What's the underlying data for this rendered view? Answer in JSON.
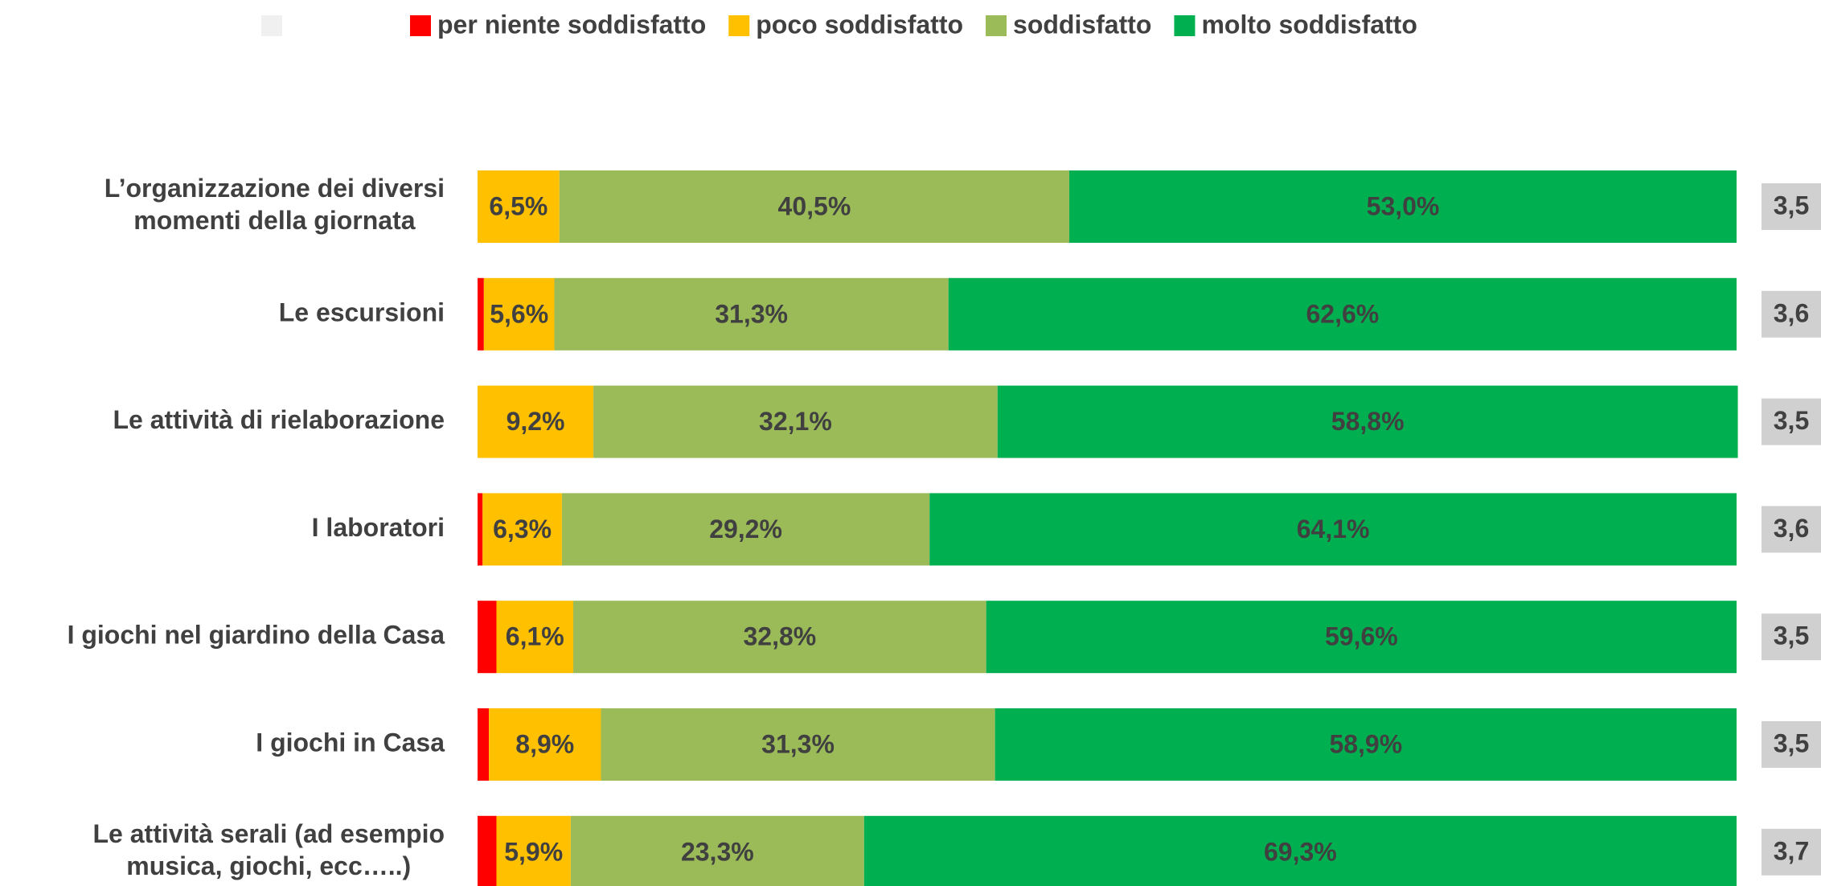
{
  "chart_data": {
    "type": "stacked_bar_horizontal",
    "categories": [
      "L’organizzazione dei diversi\nmomenti della giornata",
      "Le escursioni",
      "Le attività di rielaborazione",
      "I laboratori",
      "I giochi nel giardino della Casa",
      "I giochi in Casa",
      "Le attività serali (ad esempio\nmusica, giochi, ecc…..)"
    ],
    "xlim": [
      0,
      100
    ],
    "legend": "top",
    "series": [
      {
        "name": "per niente soddisfatto",
        "color": "#ff0000",
        "values": [
          0,
          0.5,
          0,
          0.4,
          1.5,
          0.9,
          1.5
        ]
      },
      {
        "name": "poco soddisfatto",
        "color": "#ffc000",
        "values": [
          6.5,
          5.6,
          9.2,
          6.3,
          6.1,
          8.9,
          5.9
        ],
        "value_labels": [
          "6,5%",
          "5,6%",
          "9,2%",
          "6,3%",
          "6,1%",
          "8,9%",
          "5,9%"
        ]
      },
      {
        "name": "soddisfatto",
        "color": "#9bbb59",
        "values": [
          40.5,
          31.3,
          32.1,
          29.2,
          32.8,
          31.3,
          23.3
        ],
        "value_labels": [
          "40,5%",
          "31,3%",
          "32,1%",
          "29,2%",
          "32,8%",
          "31,3%",
          "23,3%"
        ]
      },
      {
        "name": "molto soddisfatto",
        "color": "#00b050",
        "values": [
          53.0,
          62.6,
          58.8,
          64.1,
          59.6,
          58.9,
          69.3
        ],
        "value_labels": [
          "53,0%",
          "62,6%",
          "58,8%",
          "64,1%",
          "59,6%",
          "58,9%",
          "69,3%"
        ]
      }
    ],
    "scores": {
      "color": "#d0d0d0",
      "values": [
        3.5,
        3.6,
        3.5,
        3.6,
        3.5,
        3.5,
        3.7
      ],
      "value_labels": [
        "3,5",
        "3,6",
        "3,5",
        "3,6",
        "3,5",
        "3,5",
        "3,7"
      ]
    }
  }
}
